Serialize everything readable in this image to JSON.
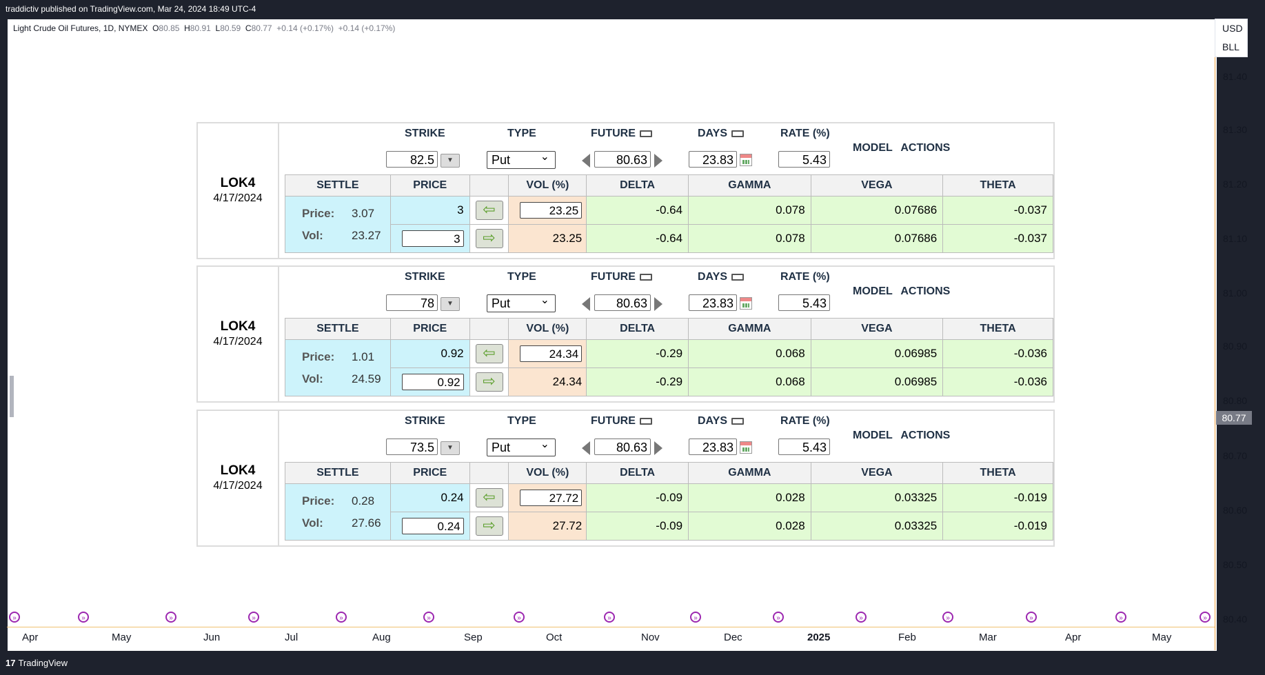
{
  "topbar": {
    "text": "traddictiv published on TradingView.com, Mar 24, 2024 18:49 UTC-4"
  },
  "legend": {
    "symbol": "Light Crude Oil Futures, 1D, NYMEX",
    "open_l": "O",
    "open": "80.85",
    "high_l": "H",
    "high": "80.91",
    "low_l": "L",
    "low": "80.59",
    "close_l": "C",
    "close": "80.77",
    "chg1": "+0.14 (+0.17%)",
    "chg2": "+0.14 (+0.17%)"
  },
  "currency": {
    "ccy": "USD",
    "unit": "BLL"
  },
  "price_axis": [
    "81.40",
    "81.30",
    "81.20",
    "81.10",
    "81.00",
    "80.90",
    "80.80",
    "80.70",
    "80.60",
    "80.50",
    "80.40"
  ],
  "current_price": "80.77",
  "time_axis": [
    "Apr",
    "May",
    "Jun",
    "Jul",
    "Aug",
    "Sep",
    "Oct",
    "Nov",
    "Dec",
    "2025",
    "Feb",
    "Mar",
    "Apr",
    "May"
  ],
  "footer": {
    "brand": "TradingView",
    "logo": "17"
  },
  "headers": {
    "strike": "STRIKE",
    "type": "TYPE",
    "future": "FUTURE",
    "days": "DAYS",
    "rate": "RATE (%)",
    "model_actions": "MODEL ACTIONS",
    "settle": "SETTLE",
    "price": "PRICE",
    "vol": "VOL (%)",
    "delta": "DELTA",
    "gamma": "GAMMA",
    "vega": "VEGA",
    "theta": "THETA",
    "price_label": "Price:",
    "vol_label": "Vol:"
  },
  "panels": [
    {
      "symbol": "LOK4",
      "date": "4/17/2024",
      "strike": "82.5",
      "type": "Put",
      "future": "80.63",
      "days": "23.83",
      "rate": "5.43",
      "settle_price": "3.07",
      "settle_vol": "23.27",
      "row1": {
        "price": "3",
        "vol": "23.25",
        "delta": "-0.64",
        "gamma": "0.078",
        "vega": "0.07686",
        "theta": "-0.037"
      },
      "row2": {
        "price": "3",
        "vol": "23.25",
        "delta": "-0.64",
        "gamma": "0.078",
        "vega": "0.07686",
        "theta": "-0.037"
      }
    },
    {
      "symbol": "LOK4",
      "date": "4/17/2024",
      "strike": "78",
      "type": "Put",
      "future": "80.63",
      "days": "23.83",
      "rate": "5.43",
      "settle_price": "1.01",
      "settle_vol": "24.59",
      "row1": {
        "price": "0.92",
        "vol": "24.34",
        "delta": "-0.29",
        "gamma": "0.068",
        "vega": "0.06985",
        "theta": "-0.036"
      },
      "row2": {
        "price": "0.92",
        "vol": "24.34",
        "delta": "-0.29",
        "gamma": "0.068",
        "vega": "0.06985",
        "theta": "-0.036"
      }
    },
    {
      "symbol": "LOK4",
      "date": "4/17/2024",
      "strike": "73.5",
      "type": "Put",
      "future": "80.63",
      "days": "23.83",
      "rate": "5.43",
      "settle_price": "0.28",
      "settle_vol": "27.66",
      "row1": {
        "price": "0.24",
        "vol": "27.72",
        "delta": "-0.09",
        "gamma": "0.028",
        "vega": "0.03325",
        "theta": "-0.019"
      },
      "row2": {
        "price": "0.24",
        "vol": "27.72",
        "delta": "-0.09",
        "gamma": "0.028",
        "vega": "0.03325",
        "theta": "-0.019"
      }
    }
  ]
}
